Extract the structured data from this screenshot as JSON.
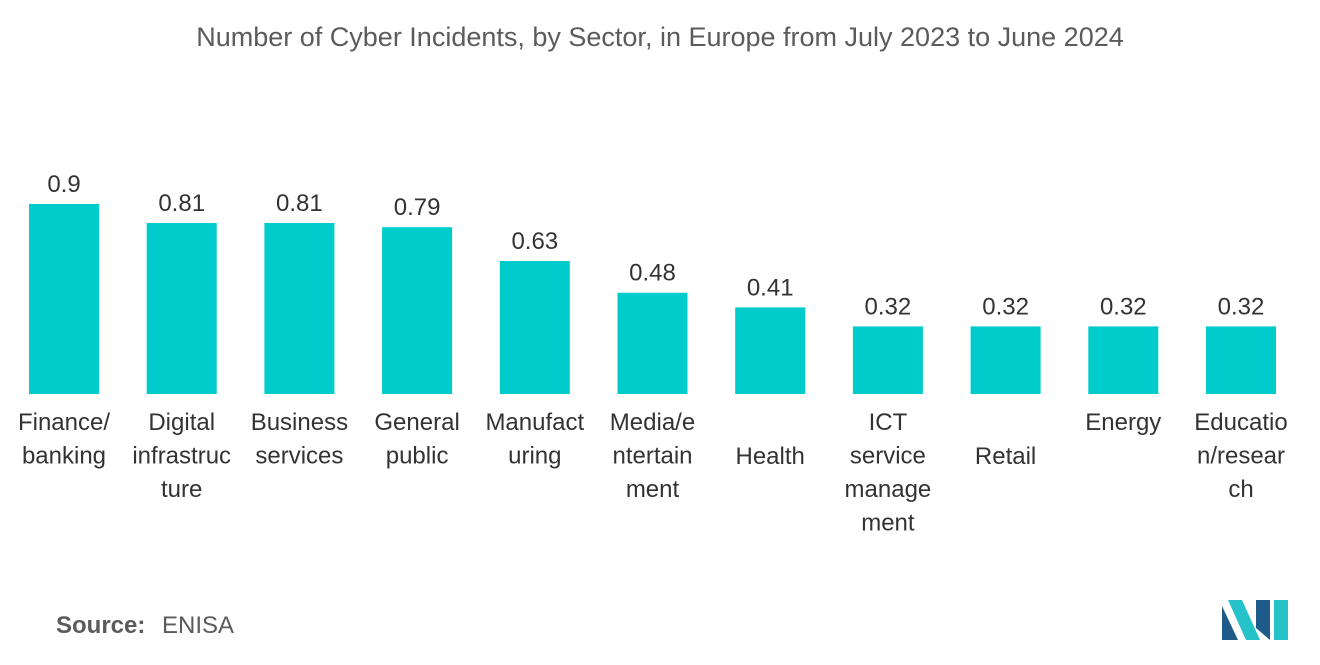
{
  "chart_data": {
    "type": "bar",
    "title": "Number of Cyber Incidents, by Sector, in Europe from July 2023 to June 2024",
    "categories": [
      [
        "Finance/",
        "banking"
      ],
      [
        "Digital",
        "infrastruc",
        "ture"
      ],
      [
        "Business",
        "services"
      ],
      [
        "General",
        "public"
      ],
      [
        "Manufact",
        "uring"
      ],
      [
        "Media/e",
        "ntertain",
        "ment"
      ],
      [
        "Health"
      ],
      [
        "ICT",
        "service",
        "manage",
        "ment"
      ],
      [
        "Retail"
      ],
      [
        "Energy"
      ],
      [
        "Educatio",
        "n/resear",
        "ch"
      ]
    ],
    "values": [
      0.9,
      0.81,
      0.81,
      0.79,
      0.63,
      0.48,
      0.41,
      0.32,
      0.32,
      0.32,
      0.32
    ],
    "value_labels": [
      "0.9",
      "0.81",
      "0.81",
      "0.79",
      "0.63",
      "0.48",
      "0.41",
      "0.32",
      "0.32",
      "0.32",
      "0.32"
    ],
    "xlabel": "",
    "ylabel": "",
    "ylim": [
      0,
      0.9
    ],
    "grid": false,
    "legend": "none",
    "bar_color": "#00cccc"
  },
  "source": {
    "label": "Source:",
    "value": "ENISA"
  },
  "logo": {
    "name": "brand-logo",
    "color_dark": "#1f5b8a",
    "color_light": "#26c2c9"
  }
}
